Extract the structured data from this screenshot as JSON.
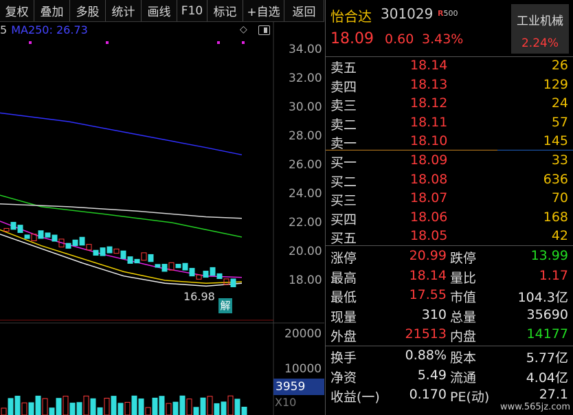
{
  "toolbar": {
    "items": [
      "复权",
      "叠加",
      "多股",
      "统计",
      "画线",
      "F10",
      "标记",
      "+自选",
      "返回"
    ]
  },
  "chart": {
    "ma_prefix": "5",
    "ma_label": "MA250: 26.73",
    "price_ticks": [
      "34.00",
      "32.00",
      "30.00",
      "28.00",
      "26.00",
      "24.00",
      "22.00",
      "20.00",
      "18.00"
    ],
    "volume_ticks": [
      "20000",
      "10000"
    ],
    "volume_badge": "3959",
    "volume_multiplier": "X10",
    "low_marker": "16.98",
    "unlock_marker": "解",
    "colors": {
      "ma250": "#3030ff",
      "ma120": "#22cc22",
      "ma60": "#d8d8d8",
      "ma20": "#e020e0",
      "ma5": "#f0f0f0",
      "ma10": "#f0d000",
      "up": "#ff3b3b",
      "down": "#33dddd"
    }
  },
  "quote": {
    "name": "怡合达",
    "code": "301029",
    "r_flag": "R",
    "r_num": "500",
    "price": "18.09",
    "change": "0.60",
    "change_pct": "3.43%",
    "industry": "工业机械",
    "industry_pct": "2.24%"
  },
  "order_book": {
    "asks": [
      {
        "label": "卖五",
        "price": "18.14",
        "vol": "26"
      },
      {
        "label": "卖四",
        "price": "18.13",
        "vol": "129"
      },
      {
        "label": "卖三",
        "price": "18.12",
        "vol": "24"
      },
      {
        "label": "卖二",
        "price": "18.11",
        "vol": "57"
      },
      {
        "label": "卖一",
        "price": "18.10",
        "vol": "145"
      }
    ],
    "bids": [
      {
        "label": "买一",
        "price": "18.09",
        "vol": "33"
      },
      {
        "label": "买二",
        "price": "18.08",
        "vol": "636"
      },
      {
        "label": "买三",
        "price": "18.07",
        "vol": "70"
      },
      {
        "label": "买四",
        "price": "18.06",
        "vol": "168"
      },
      {
        "label": "买五",
        "price": "18.05",
        "vol": "42"
      }
    ]
  },
  "stats": {
    "rows1": [
      {
        "l1": "涨停",
        "v1": "20.99",
        "c1": "red",
        "l2": "跌停",
        "v2": "13.99",
        "c2": "green"
      },
      {
        "l1": "最高",
        "v1": "18.14",
        "c1": "red",
        "l2": "量比",
        "v2": "1.17",
        "c2": "red"
      },
      {
        "l1": "最低",
        "v1": "17.55",
        "c1": "red",
        "l2": "市值",
        "v2": "104.3亿",
        "c2": "white"
      },
      {
        "l1": "现量",
        "v1": "310",
        "c1": "white",
        "l2": "总量",
        "v2": "35690",
        "c2": "white"
      },
      {
        "l1": "外盘",
        "v1": "21513",
        "c1": "red",
        "l2": "内盘",
        "v2": "14177",
        "c2": "green"
      }
    ],
    "rows2": [
      {
        "l1": "换手",
        "v1": "0.88%",
        "c1": "white",
        "l2": "股本",
        "v2": "5.77亿",
        "c2": "white"
      },
      {
        "l1": "净资",
        "v1": "5.49",
        "c1": "white",
        "l2": "流通",
        "v2": "4.04亿",
        "c2": "white"
      },
      {
        "l1": "收益(一)",
        "v1": "0.170",
        "c1": "white",
        "l2": "PE(动)",
        "v2": "27.1",
        "c2": "white"
      }
    ]
  },
  "watermark": "www.565jz.com"
}
